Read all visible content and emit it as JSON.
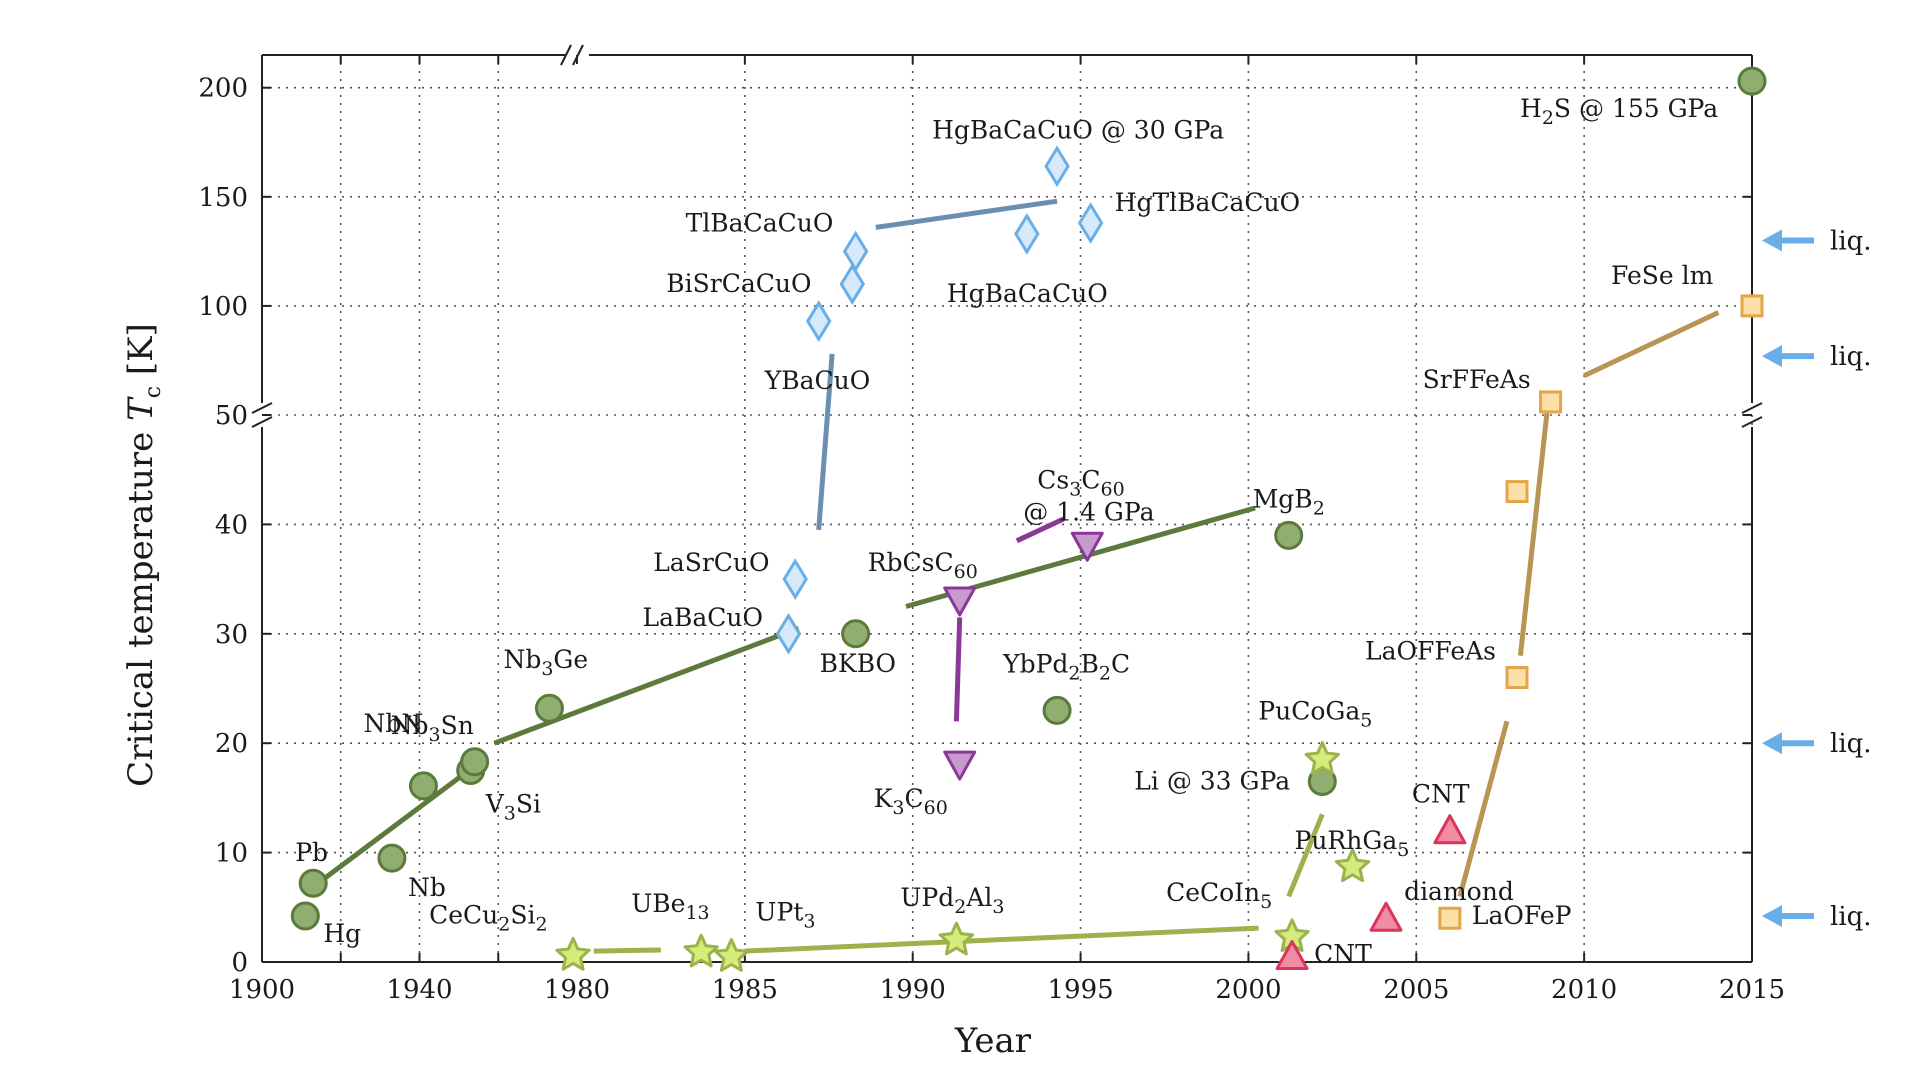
{
  "chart_data": {
    "type": "scatter",
    "xlabel": "Year",
    "ylabel_main": "Critical temperature ",
    "ylabel_symbol": "T",
    "ylabel_sub": "c",
    "ylabel_unit": " [K]",
    "xlim": [
      1900,
      2015
    ],
    "x_axis_broken_at": 1980,
    "x_segments": [
      {
        "range": [
          1900,
          1980
        ],
        "ticks": [
          1900,
          1920,
          1940,
          1960,
          1980
        ]
      },
      {
        "range": [
          1980,
          2015
        ],
        "ticks": [
          1985,
          1990,
          1995,
          2000,
          2005,
          2010,
          2015
        ]
      }
    ],
    "x_tick_labels": [
      "1900",
      "1940",
      "1980",
      "1985",
      "1990",
      "1995",
      "2000",
      "2005",
      "2010",
      "2015"
    ],
    "ylim": [
      0,
      215
    ],
    "y_axis_broken_at": 50,
    "y_segments": [
      {
        "range": [
          0,
          50
        ],
        "ticks": [
          0,
          10,
          20,
          30,
          40,
          50
        ]
      },
      {
        "range": [
          50,
          215
        ],
        "ticks": [
          50,
          100,
          150,
          200
        ]
      }
    ],
    "y_tick_labels": [
      "0",
      "10",
      "20",
      "30",
      "40",
      "50",
      "100",
      "150",
      "200"
    ],
    "grid": true,
    "colors": {
      "conventional": "#5b7a3b",
      "conventional_fill": "#8fae6f",
      "cuprate": "#6aaee8",
      "cuprate_fill": "#d6eafb",
      "cuprate_line": "#6b8fb0",
      "fulleride": "#8a3a96",
      "fulleride_fill": "#c99ad0",
      "heavy_fermion": "#9db24d",
      "heavy_fermion_fill": "#d4ec7a",
      "carbon": "#d9365c",
      "carbon_fill": "#f18ca2",
      "iron": "#e3a548",
      "iron_fill": "#fbe0a8",
      "iron_line": "#b99555",
      "arrow": "#6aaee8"
    },
    "series": [
      {
        "marker": "circle",
        "points": [
          {
            "x": 1911,
            "y": 4.2,
            "label": "Hg"
          },
          {
            "x": 1913,
            "y": 7.2,
            "label": "Pb"
          },
          {
            "x": 1941,
            "y": 16.1,
            "label": "NbN"
          },
          {
            "x": 1933,
            "y": 9.5,
            "label": "Nb"
          },
          {
            "x": 1953,
            "y": 17.5,
            "label": "V",
            "sub": "3",
            "tail": "Si"
          },
          {
            "x": 1954,
            "y": 18.3,
            "label": "Nb",
            "sub": "3",
            "tail": "Sn"
          },
          {
            "x": 1973,
            "y": 23.2,
            "label": "Nb",
            "sub": "3",
            "tail": "Ge"
          },
          {
            "x": 1988.3,
            "y": 30,
            "label": "BKBO"
          },
          {
            "x": 1994.3,
            "y": 23,
            "label": "YbPd",
            "sub": "2",
            "tail": "B",
            "sub2": "2",
            "tail2": "C"
          },
          {
            "x": 2001.2,
            "y": 39,
            "label": "MgB",
            "sub": "2"
          },
          {
            "x": 2002.2,
            "y": 16.5,
            "label": "Li @ 33 GPa"
          },
          {
            "x": 2015,
            "y": 203,
            "label": "H",
            "sub": "2",
            "tail": "S @ 155 GPa"
          }
        ]
      },
      {
        "marker": "diamond",
        "points": [
          {
            "x": 1986.3,
            "y": 30,
            "label": "LaBaCuO"
          },
          {
            "x": 1986.5,
            "y": 35,
            "label": "LaSrCuO"
          },
          {
            "x": 1987.2,
            "y": 93,
            "label": "YBaCuO"
          },
          {
            "x": 1988.2,
            "y": 110,
            "label": "BiSrCaCuO"
          },
          {
            "x": 1988.3,
            "y": 125,
            "label": "TlBaCaCuO"
          },
          {
            "x": 1993.4,
            "y": 133,
            "label": "HgBaCaCuO"
          },
          {
            "x": 1994.3,
            "y": 164,
            "label": "HgBaCaCuO @ 30 GPa"
          },
          {
            "x": 1995.3,
            "y": 138,
            "label": "HgTlBaCaCuO"
          }
        ]
      },
      {
        "marker": "triangle-down",
        "points": [
          {
            "x": 1991.4,
            "y": 18,
            "label": "K",
            "sub": "3",
            "tail": "C",
            "sub2": "60"
          },
          {
            "x": 1991.4,
            "y": 33,
            "label": "RbCsC",
            "sub": "60"
          },
          {
            "x": 1995.2,
            "y": 38,
            "label": "Cs",
            "sub": "3",
            "tail": "C",
            "sub2": "60",
            "line2": "@ 1.4 GPa"
          }
        ]
      },
      {
        "marker": "star",
        "points": [
          {
            "x": 1979,
            "y": 0.6,
            "label": "CeCu",
            "sub": "2",
            "tail": "Si",
            "sub2": "2"
          },
          {
            "x": 1983.7,
            "y": 0.9,
            "label": "UBe",
            "sub": "13"
          },
          {
            "x": 1984.6,
            "y": 0.5,
            "label": "UPt",
            "sub": "3"
          },
          {
            "x": 1991.3,
            "y": 2,
            "label": "UPd",
            "sub": "2",
            "tail": "Al",
            "sub2": "3"
          },
          {
            "x": 2001.3,
            "y": 2.3,
            "label": "CeCoIn",
            "sub": "5"
          },
          {
            "x": 2003.1,
            "y": 8.7,
            "label": "PuRhGa",
            "sub": "5"
          },
          {
            "x": 2002.2,
            "y": 18.5,
            "label": "PuCoGa",
            "sub": "5"
          }
        ]
      },
      {
        "marker": "triangle-up",
        "points": [
          {
            "x": 2001.3,
            "y": 0.5,
            "label": "CNT"
          },
          {
            "x": 2004.1,
            "y": 4,
            "label": "diamond"
          },
          {
            "x": 2006,
            "y": 12,
            "label": "CNT"
          }
        ]
      },
      {
        "marker": "square",
        "points": [
          {
            "x": 2006,
            "y": 4,
            "label": "LaOFeP"
          },
          {
            "x": 2008,
            "y": 26,
            "label": "LaOFFeAs"
          },
          {
            "x": 2008,
            "y": 43,
            "label": ""
          },
          {
            "x": 2009,
            "y": 56,
            "label": "SrFFeAs"
          },
          {
            "x": 2015,
            "y": 100,
            "label": "FeSe    lm"
          }
        ]
      }
    ],
    "arrows": [
      {
        "y": 4.2,
        "label": "liq."
      },
      {
        "y": 20,
        "label": "liq."
      },
      {
        "y": 77,
        "label": "liq."
      },
      {
        "y": 130,
        "label": "liq."
      }
    ]
  }
}
